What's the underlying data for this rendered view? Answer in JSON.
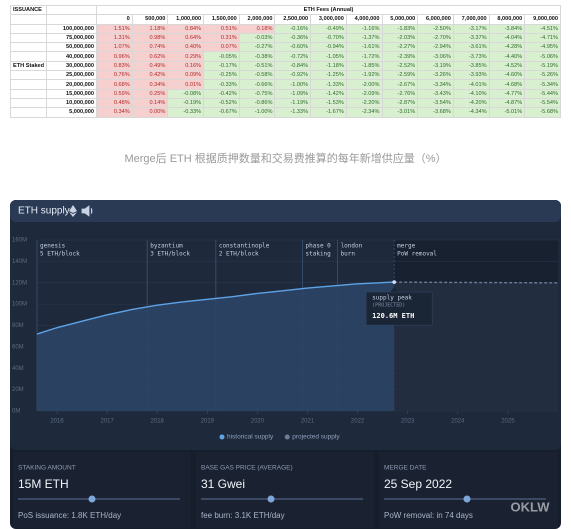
{
  "table": {
    "corner": "ISSUANCE",
    "group_header": "ETH Fees (Annual)",
    "row_group": "ETH Staked",
    "columns": [
      "0",
      "500,000",
      "1,000,000",
      "1,500,000",
      "2,000,000",
      "2,500,000",
      "3,000,000",
      "4,000,000",
      "5,000,000",
      "6,000,000",
      "7,000,000",
      "8,000,000",
      "9,000,000"
    ],
    "rows": [
      {
        "label": "100,000,000",
        "cells": [
          "1.51%",
          "1.18%",
          "0.84%",
          "0.51%",
          "0.18%",
          "-0.16%",
          "-0.49%",
          "-1.16%",
          "-1.83%",
          "-2.50%",
          "-3.17%",
          "-3.84%",
          "-4.51%"
        ]
      },
      {
        "label": "75,000,000",
        "cells": [
          "1.31%",
          "0.98%",
          "0.64%",
          "0.31%",
          "-0.03%",
          "-0.36%",
          "-0.70%",
          "-1.37%",
          "-2.03%",
          "-2.70%",
          "-3.37%",
          "-4.04%",
          "-4.71%"
        ]
      },
      {
        "label": "50,000,000",
        "cells": [
          "1.07%",
          "0.74%",
          "0.40%",
          "0.07%",
          "-0.27%",
          "-0.60%",
          "-0.94%",
          "-1.61%",
          "-2.27%",
          "-2.94%",
          "-3.61%",
          "-4.28%",
          "-4.95%"
        ]
      },
      {
        "label": "40,000,000",
        "cells": [
          "0.96%",
          "0.62%",
          "0.29%",
          "-0.05%",
          "-0.38%",
          "-0.72%",
          "-1.05%",
          "-1.72%",
          "-2.39%",
          "-3.06%",
          "-3.73%",
          "-4.40%",
          "-5.06%"
        ]
      },
      {
        "label": "30,000,000",
        "cells": [
          "0.83%",
          "0.49%",
          "0.16%",
          "-0.17%",
          "-0.51%",
          "-0.84%",
          "-1.18%",
          "-1.85%",
          "-2.52%",
          "-3.19%",
          "-3.85%",
          "-4.52%",
          "-5.19%"
        ]
      },
      {
        "label": "25,000,000",
        "cells": [
          "0.76%",
          "0.42%",
          "0.09%",
          "-0.25%",
          "-0.58%",
          "-0.92%",
          "-1.25%",
          "-1.92%",
          "-2.59%",
          "-3.26%",
          "-3.93%",
          "-4.60%",
          "-5.26%"
        ]
      },
      {
        "label": "20,000,000",
        "cells": [
          "0.68%",
          "0.34%",
          "0.01%",
          "-0.33%",
          "-0.66%",
          "-1.00%",
          "-1.33%",
          "-2.00%",
          "-2.67%",
          "-3.34%",
          "-4.01%",
          "-4.68%",
          "-5.34%"
        ]
      },
      {
        "label": "15,000,000",
        "cells": [
          "0.59%",
          "0.25%",
          "-0.08%",
          "-0.42%",
          "-0.75%",
          "-1.09%",
          "-1.42%",
          "-2.09%",
          "-2.76%",
          "-3.43%",
          "-4.10%",
          "-4.77%",
          "-5.44%"
        ]
      },
      {
        "label": "10,000,000",
        "cells": [
          "0.48%",
          "0.14%",
          "-0.19%",
          "-0.52%",
          "-0.86%",
          "-1.19%",
          "-1.53%",
          "-2.20%",
          "-2.87%",
          "-3.54%",
          "-4.20%",
          "-4.87%",
          "-5.54%"
        ]
      },
      {
        "label": "5,000,000",
        "cells": [
          "0.34%",
          "0.00%",
          "-0.33%",
          "-0.67%",
          "-1.00%",
          "-1.33%",
          "-1.67%",
          "-2.34%",
          "-3.01%",
          "-3.68%",
          "-4.34%",
          "-5.01%",
          "-5.68%"
        ]
      }
    ]
  },
  "caption": "Merge后 ETH 根据质押数量和交易费推算的每年新增供应量（%）",
  "dashboard": {
    "controls": [
      {
        "label": "STAKING AMOUNT",
        "value": "15M ETH",
        "detail": "PoS issuance: 1.8K ETH/day"
      },
      {
        "label": "BASE GAS PRICE (AVERAGE)",
        "value": "31 Gwei",
        "detail": "fee burn: 3.1K ETH/day"
      },
      {
        "label": "MERGE DATE",
        "value": "25 Sep 2022",
        "detail": "PoW removal: in 74 days"
      }
    ],
    "watermark": "OKLW"
  },
  "chart_data": {
    "type": "line",
    "title": "ETH supply",
    "xlim": [
      2015.6,
      2026
    ],
    "xticks": [
      2016,
      2017,
      2018,
      2019,
      2020,
      2021,
      2022,
      2023,
      2024,
      2025
    ],
    "ylim": [
      0,
      160
    ],
    "yticks": [
      {
        "value": 0,
        "label": "0M"
      },
      {
        "value": 20,
        "label": "20M"
      },
      {
        "value": 40,
        "label": "40M"
      },
      {
        "value": 60,
        "label": "60M"
      },
      {
        "value": 80,
        "label": "80M"
      },
      {
        "value": 100,
        "label": "100M"
      },
      {
        "value": 120,
        "label": "120M"
      },
      {
        "value": 140,
        "label": "140M"
      },
      {
        "value": 160,
        "label": "160M"
      }
    ],
    "grid": true,
    "events": [
      {
        "label": "genesis",
        "detail": "5 ETH/block",
        "x": 2015.6
      },
      {
        "label": "byzantium",
        "detail": "3 ETH/block",
        "x": 2017.8
      },
      {
        "label": "constantinople",
        "detail": "2 ETH/block",
        "x": 2019.17
      },
      {
        "label": "phase 0",
        "detail": "staking",
        "x": 2020.9
      },
      {
        "label": "london",
        "detail": "burn",
        "x": 2021.6
      },
      {
        "label": "merge",
        "detail": "PoW removal",
        "x": 2022.73
      }
    ],
    "annotation": {
      "title": "supply peak",
      "subtitle": "(PROJECTED)",
      "label": "120.6M ETH",
      "x": 2022.73,
      "value": 120.6
    },
    "series": [
      {
        "name": "historical supply",
        "color": "#5ea3e8",
        "x": [
          2015.6,
          2016,
          2016.5,
          2017,
          2017.5,
          2018,
          2018.5,
          2019,
          2019.5,
          2020,
          2020.5,
          2021,
          2021.5,
          2022,
          2022.73
        ],
        "values": [
          72,
          78,
          84,
          90,
          95,
          99,
          102,
          104.5,
          107,
          110,
          112.5,
          115,
          117,
          119,
          120.6
        ]
      },
      {
        "name": "projected supply",
        "color": "#6c7b96",
        "x": [
          2022.73,
          2023,
          2024,
          2025,
          2026
        ],
        "values": [
          120.6,
          120.5,
          120.3,
          120.1,
          119.9
        ]
      }
    ]
  }
}
